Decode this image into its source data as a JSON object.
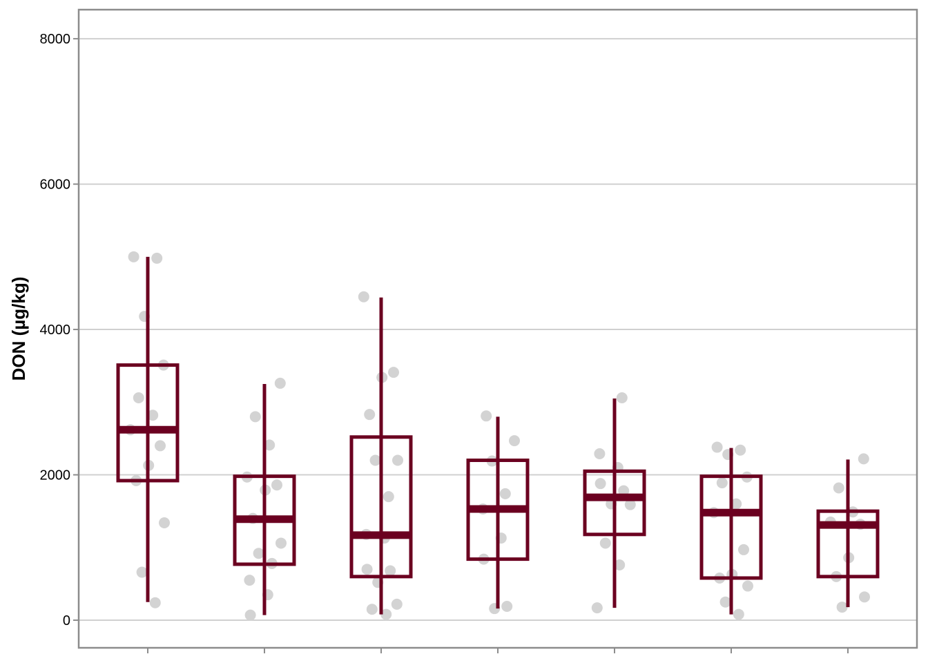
{
  "chart_data": {
    "type": "box",
    "title": "",
    "xlabel": "",
    "ylabel": "DON (µg/kg)",
    "ylim": [
      -380,
      8400
    ],
    "yticks": [
      0,
      2000,
      4000,
      6000,
      8000
    ],
    "grid": "horizontal",
    "colors": {
      "box": "#6b0020",
      "points": "#d3d3d3",
      "grid": "#d0d0d0",
      "frame": "#8c8c8c"
    },
    "groups": [
      {
        "box": {
          "min": 250,
          "q1": 1920,
          "median": 2620,
          "q3": 3510,
          "max": 5000
        },
        "points": [
          5000,
          4980,
          4180,
          3510,
          3060,
          2820,
          2620,
          2400,
          2130,
          1920,
          1340,
          660,
          240
        ]
      },
      {
        "box": {
          "min": 70,
          "q1": 770,
          "median": 1390,
          "q3": 1980,
          "max": 3250
        },
        "points": [
          3260,
          2800,
          2410,
          1970,
          1860,
          1790,
          1400,
          1060,
          920,
          780,
          550,
          350,
          70
        ]
      },
      {
        "box": {
          "min": 80,
          "q1": 600,
          "median": 1170,
          "q3": 2520,
          "max": 4440
        },
        "points": [
          4450,
          3410,
          3340,
          2830,
          2200,
          2200,
          1700,
          1180,
          1130,
          700,
          680,
          520,
          220,
          150,
          80
        ]
      },
      {
        "box": {
          "min": 160,
          "q1": 840,
          "median": 1530,
          "q3": 2200,
          "max": 2800
        },
        "points": [
          2810,
          2470,
          2190,
          1740,
          1530,
          1130,
          840,
          190,
          160
        ]
      },
      {
        "box": {
          "min": 170,
          "q1": 1180,
          "median": 1690,
          "q3": 2050,
          "max": 3050
        },
        "points": [
          3060,
          2290,
          2100,
          1880,
          1780,
          1600,
          1590,
          1060,
          760,
          170
        ]
      },
      {
        "box": {
          "min": 80,
          "q1": 580,
          "median": 1480,
          "q3": 1980,
          "max": 2370
        },
        "points": [
          2380,
          2340,
          2280,
          1970,
          1890,
          1600,
          1480,
          970,
          630,
          580,
          470,
          250,
          80
        ]
      },
      {
        "box": {
          "min": 180,
          "q1": 600,
          "median": 1310,
          "q3": 1500,
          "max": 2210
        },
        "points": [
          2220,
          1820,
          1490,
          1350,
          1320,
          860,
          600,
          320,
          180
        ]
      }
    ]
  }
}
